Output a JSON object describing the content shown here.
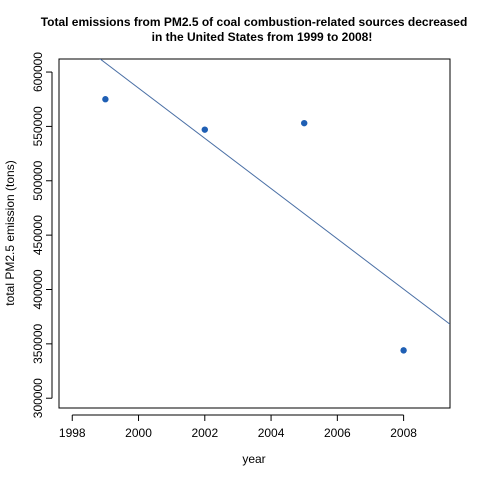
{
  "chart_data": {
    "type": "scatter",
    "title_lines": [
      "Total emissions from PM2.5 of coal combustion-related sources decreased",
      "in the United States from 1999 to 2008!"
    ],
    "xlabel": "year",
    "ylabel": "total PM2.5 emission (tons)",
    "xlim": [
      1997.6,
      2009.4
    ],
    "ylim": [
      291000,
      612000
    ],
    "x_ticks": [
      1998,
      2000,
      2002,
      2004,
      2006,
      2008
    ],
    "y_ticks": [
      300000,
      350000,
      400000,
      450000,
      500000,
      550000,
      600000
    ],
    "points": [
      {
        "x": 1999,
        "y": 575000
      },
      {
        "x": 2002,
        "y": 547000
      },
      {
        "x": 2005,
        "y": 553000
      },
      {
        "x": 2008,
        "y": 344000
      }
    ],
    "trend_line": {
      "x": [
        1998.8,
        2009.4
      ],
      "y": [
        613000,
        368000
      ]
    },
    "colors": {
      "points": "#1f5fb4",
      "trend_line": "#4a6fa5",
      "axes": "#000000"
    }
  }
}
